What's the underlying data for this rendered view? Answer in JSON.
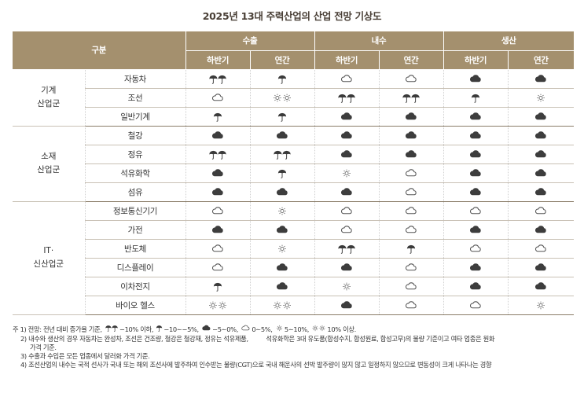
{
  "title": "2025년 13대 주력산업의 산업 전망 기상도",
  "header": {
    "category": "구분",
    "groups": [
      "수출",
      "내수",
      "생산"
    ],
    "sub": [
      "하반기",
      "연간",
      "하반기",
      "연간",
      "하반기",
      "연간"
    ]
  },
  "rows": [
    {
      "group": "기계\n산업군",
      "item": "자동차",
      "cells": [
        "heavy-rain",
        "rain",
        "cloudy",
        "cloudy",
        "overcast",
        "overcast"
      ]
    },
    {
      "group": "",
      "item": "조선",
      "cells": [
        "cloudy",
        "very-sunny",
        "heavy-rain",
        "heavy-rain",
        "rain",
        "sunny"
      ]
    },
    {
      "group": "",
      "item": "일반기계",
      "cells": [
        "rain",
        "rain",
        "overcast",
        "overcast",
        "overcast",
        "overcast"
      ]
    },
    {
      "group": "소재\n산업군",
      "item": "철강",
      "cells": [
        "overcast",
        "overcast",
        "overcast",
        "overcast",
        "overcast",
        "overcast"
      ]
    },
    {
      "group": "",
      "item": "정유",
      "cells": [
        "heavy-rain",
        "heavy-rain",
        "overcast",
        "overcast",
        "overcast",
        "overcast"
      ]
    },
    {
      "group": "",
      "item": "석유화학",
      "cells": [
        "overcast",
        "rain",
        "sunny",
        "cloudy",
        "overcast",
        "overcast"
      ]
    },
    {
      "group": "",
      "item": "섬유",
      "cells": [
        "overcast",
        "overcast",
        "overcast",
        "cloudy",
        "overcast",
        "overcast"
      ]
    },
    {
      "group": "IT·\n신산업군",
      "item": "정보통신기기",
      "cells": [
        "cloudy",
        "sunny",
        "cloudy",
        "cloudy",
        "cloudy",
        "cloudy"
      ]
    },
    {
      "group": "",
      "item": "가전",
      "cells": [
        "overcast",
        "overcast",
        "cloudy",
        "cloudy",
        "overcast",
        "overcast"
      ]
    },
    {
      "group": "",
      "item": "반도체",
      "cells": [
        "cloudy",
        "sunny",
        "heavy-rain",
        "rain",
        "cloudy",
        "cloudy"
      ]
    },
    {
      "group": "",
      "item": "디스플레이",
      "cells": [
        "cloudy",
        "overcast",
        "overcast",
        "cloudy",
        "overcast",
        "overcast"
      ]
    },
    {
      "group": "",
      "item": "이차전지",
      "cells": [
        "rain",
        "overcast",
        "sunny",
        "cloudy",
        "overcast",
        "overcast"
      ]
    },
    {
      "group": "",
      "item": "바이오 헬스",
      "cells": [
        "very-sunny",
        "very-sunny",
        "overcast",
        "cloudy",
        "cloudy",
        "sunny"
      ]
    }
  ],
  "notes": {
    "n1_prefix": "주 1) 전망: 전년 대비 증가율 기준,",
    "n1_items": [
      "−10% 이하,",
      "−10∼−5%,",
      "−5∼0%,",
      "0∼5%,",
      "5∼10%,",
      "10% 이상."
    ],
    "n1_icons": [
      "heavy-rain",
      "rain",
      "overcast",
      "cloudy",
      "sunny",
      "very-sunny"
    ],
    "n2a": "2) 내수와 생산의 경우 자동차는 완성차, 조선은 건조량, 철강은 철강재, 정유는 석유제품,",
    "n2b": "석유화학은 3대 유도품(합성수지, 합성원료, 합성고무)의 물량 기준이고 여타 업종은 원화",
    "n2c": "가격 기준.",
    "n3": "3) 수출과 수입은 모든 업종에서 달러화 가격 기준.",
    "n4": "4) 조선산업의 내수는 국적 선사가 국내 또는 해외 조선사에 발주하여 인수받는 물량(CGT)으로 국내 해운사의 선박 발주량이 많지 않고 일정하지 않으므로 변동성이 크게 나타나는 경향"
  }
}
